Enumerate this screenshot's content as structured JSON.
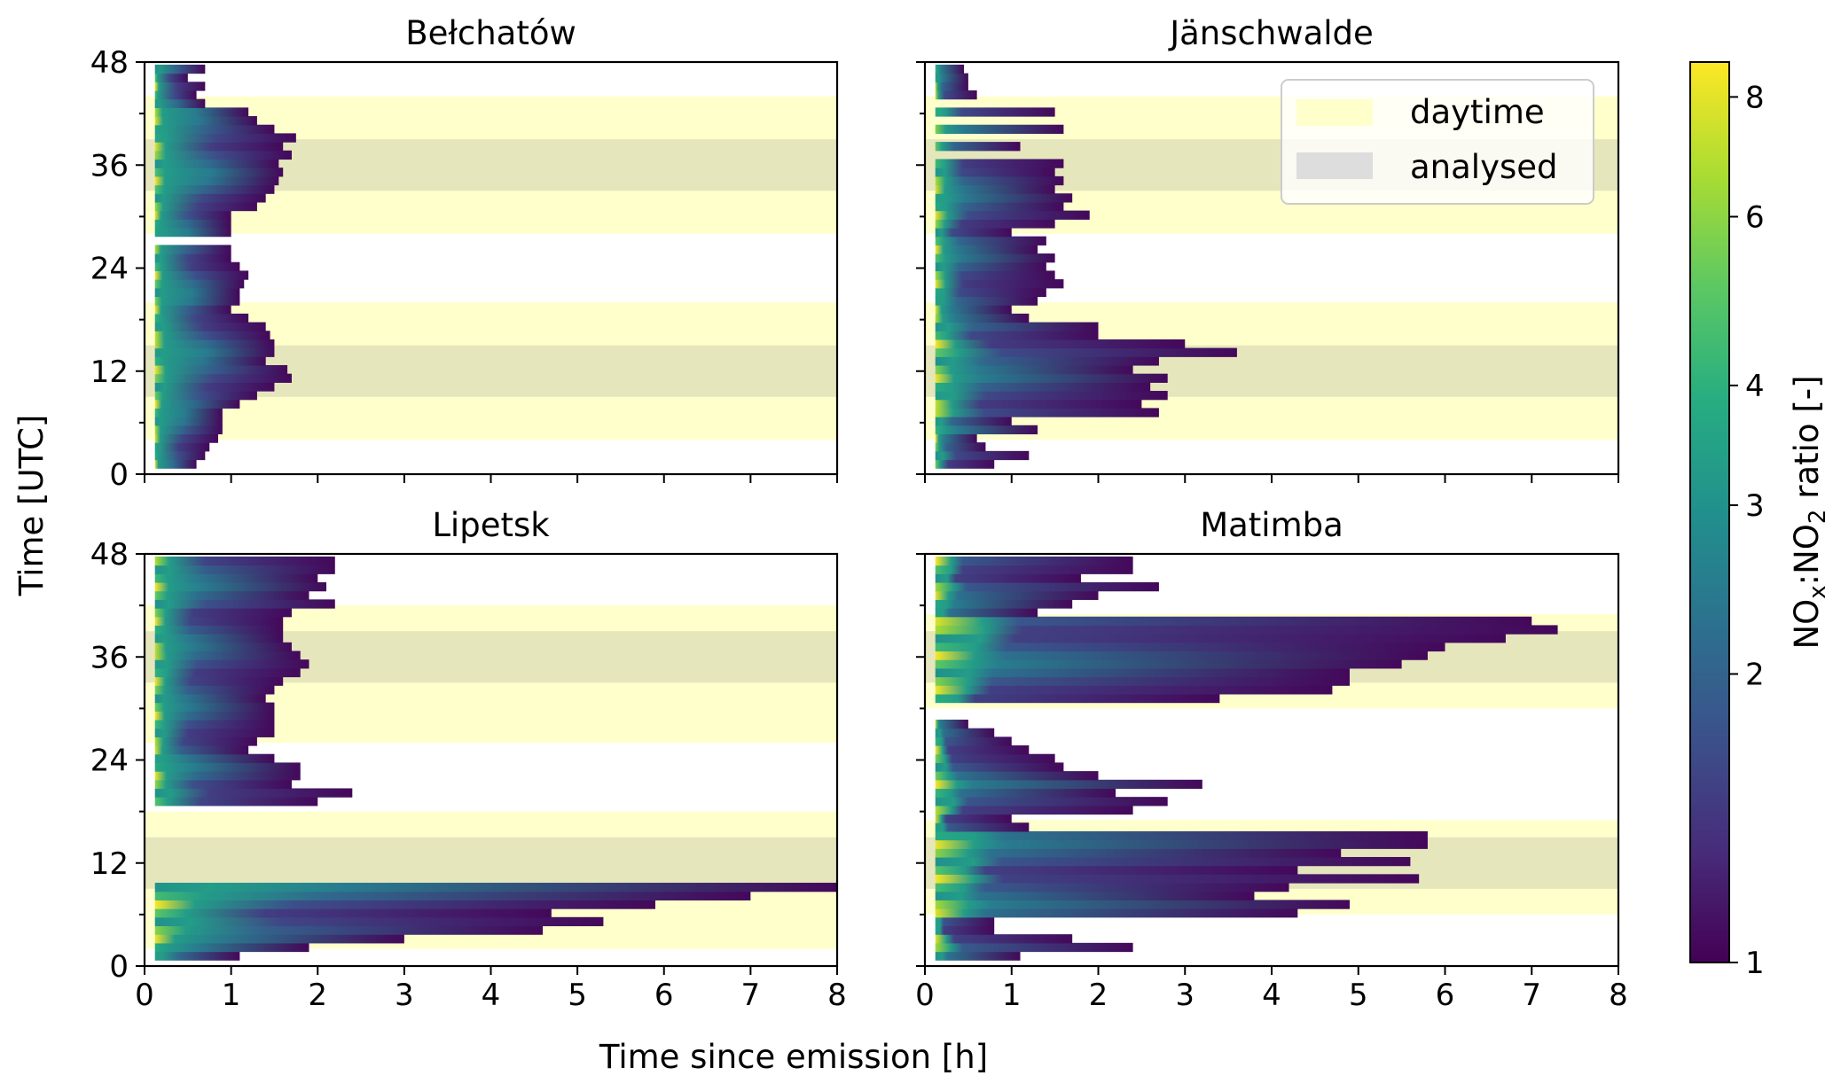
{
  "figure": {
    "xlabel": "Time since emission [h]",
    "ylabel": "Time [UTC]",
    "x_ticks": [
      0,
      1,
      2,
      3,
      4,
      5,
      6,
      7,
      8
    ],
    "y_ticks": [
      0,
      12,
      24,
      36,
      48
    ],
    "xlim": [
      0,
      8
    ],
    "ylim": [
      0,
      48
    ]
  },
  "legend": {
    "placement": "top-right of Jänschwalde panel",
    "items": [
      {
        "label": "daytime",
        "color": "#ffffcc"
      },
      {
        "label": "analysed",
        "color": "#dddddd"
      }
    ]
  },
  "colorbar": {
    "label_prefix": "NO",
    "label_sub1": "x",
    "label_mid": ":NO",
    "label_sub2": "2",
    "label_suffix": " ratio [-]",
    "scale": "log",
    "range": [
      1,
      8.7
    ],
    "ticks": [
      1,
      2,
      3,
      4,
      6,
      8
    ],
    "colormap": [
      "#440154",
      "#472c7a",
      "#3b518b",
      "#2c718e",
      "#21908d",
      "#27ad81",
      "#5cc863",
      "#aadc32",
      "#fde725"
    ]
  },
  "chart_data": [
    {
      "type": "heatmap",
      "title": "Bełchatów",
      "xlim": [
        0,
        8
      ],
      "ylim": [
        0,
        48
      ],
      "daytime": [
        [
          4,
          20
        ],
        [
          28,
          44
        ]
      ],
      "analysed": [
        [
          9,
          15
        ],
        [
          33,
          39
        ]
      ],
      "rows": [
        [
          1.2,
          0.6
        ],
        [
          2.2,
          0.7
        ],
        [
          3.2,
          0.75
        ],
        [
          4.2,
          0.85
        ],
        [
          5.2,
          0.9
        ],
        [
          6.2,
          0.9
        ],
        [
          7.2,
          0.9
        ],
        [
          8.2,
          1.1
        ],
        [
          9.2,
          1.3
        ],
        [
          10.2,
          1.5
        ],
        [
          11.2,
          1.7
        ],
        [
          12.2,
          1.65
        ],
        [
          13.2,
          1.4
        ],
        [
          14.2,
          1.5
        ],
        [
          15.2,
          1.5
        ],
        [
          16.2,
          1.45
        ],
        [
          17.2,
          1.4
        ],
        [
          18.2,
          1.2
        ],
        [
          19.2,
          1.0
        ],
        [
          20.2,
          1.1
        ],
        [
          21.2,
          1.1
        ],
        [
          22.2,
          1.15
        ],
        [
          23.2,
          1.2
        ],
        [
          24.2,
          1.1
        ],
        [
          25.2,
          1.0
        ],
        [
          26.2,
          1.0
        ],
        [
          28.2,
          1.0
        ],
        [
          29.2,
          1.0
        ],
        [
          30.2,
          1.0
        ],
        [
          31.2,
          1.3
        ],
        [
          32.2,
          1.4
        ],
        [
          33.2,
          1.5
        ],
        [
          34.2,
          1.55
        ],
        [
          35.2,
          1.6
        ],
        [
          36.2,
          1.55
        ],
        [
          37.2,
          1.7
        ],
        [
          38.2,
          1.6
        ],
        [
          39.2,
          1.75
        ],
        [
          40.2,
          1.5
        ],
        [
          41.2,
          1.3
        ],
        [
          42.2,
          1.2
        ],
        [
          43.2,
          0.7
        ],
        [
          44.2,
          0.6
        ],
        [
          45.2,
          0.7
        ],
        [
          46.2,
          0.5
        ],
        [
          47.2,
          0.7
        ]
      ]
    },
    {
      "type": "heatmap",
      "title": "Jänschwalde",
      "xlim": [
        0,
        8
      ],
      "ylim": [
        0,
        48
      ],
      "daytime": [
        [
          4,
          20
        ],
        [
          28,
          44
        ]
      ],
      "analysed": [
        [
          9,
          15
        ],
        [
          33,
          39
        ]
      ],
      "rows": [
        [
          1.2,
          0.8
        ],
        [
          2.2,
          1.2
        ],
        [
          3.2,
          0.7
        ],
        [
          4.2,
          0.6
        ],
        [
          5.2,
          1.3
        ],
        [
          6.2,
          1.0
        ],
        [
          7.2,
          2.7
        ],
        [
          8.2,
          2.5
        ],
        [
          9.2,
          2.8
        ],
        [
          10.2,
          2.6
        ],
        [
          11.2,
          2.8
        ],
        [
          12.2,
          2.4
        ],
        [
          13.2,
          2.7
        ],
        [
          14.2,
          3.6
        ],
        [
          15.2,
          3.0
        ],
        [
          16.2,
          2.0
        ],
        [
          17.2,
          2.0
        ],
        [
          18.2,
          1.2
        ],
        [
          19.2,
          1.0
        ],
        [
          20.2,
          1.3
        ],
        [
          21.2,
          1.4
        ],
        [
          22.2,
          1.6
        ],
        [
          23.2,
          1.5
        ],
        [
          24.2,
          1.4
        ],
        [
          25.2,
          1.5
        ],
        [
          26.2,
          1.3
        ],
        [
          27.2,
          1.4
        ],
        [
          28.2,
          1.0
        ],
        [
          29.2,
          1.5
        ],
        [
          30.2,
          1.9
        ],
        [
          31.2,
          1.6
        ],
        [
          32.2,
          1.7
        ],
        [
          33.2,
          1.5
        ],
        [
          34.2,
          1.6
        ],
        [
          35.2,
          1.5
        ],
        [
          36.2,
          1.6
        ],
        [
          38.2,
          1.1
        ],
        [
          40.2,
          1.6
        ],
        [
          42.2,
          1.5
        ],
        [
          44.2,
          0.6
        ],
        [
          45.2,
          0.5
        ],
        [
          46.2,
          0.5
        ],
        [
          47.2,
          0.45
        ]
      ]
    },
    {
      "type": "heatmap",
      "title": "Lipetsk",
      "xlim": [
        0,
        8
      ],
      "ylim": [
        0,
        48
      ],
      "daytime": [
        [
          2,
          18
        ],
        [
          26,
          42
        ]
      ],
      "analysed": [
        [
          9,
          15
        ],
        [
          33,
          39
        ]
      ],
      "rows": [
        [
          1.2,
          1.1
        ],
        [
          2.2,
          1.9
        ],
        [
          3.2,
          3.0
        ],
        [
          4.2,
          4.6
        ],
        [
          5.2,
          5.3
        ],
        [
          6.2,
          4.7
        ],
        [
          7.2,
          5.9
        ],
        [
          8.2,
          7.0
        ],
        [
          9.2,
          8.0
        ],
        [
          19.2,
          2.0
        ],
        [
          20.2,
          2.4
        ],
        [
          21.2,
          1.7
        ],
        [
          22.2,
          1.8
        ],
        [
          23.2,
          1.8
        ],
        [
          24.2,
          1.5
        ],
        [
          25.2,
          1.2
        ],
        [
          26.2,
          1.3
        ],
        [
          27.2,
          1.5
        ],
        [
          28.2,
          1.5
        ],
        [
          29.2,
          1.5
        ],
        [
          30.2,
          1.5
        ],
        [
          31.2,
          1.4
        ],
        [
          32.2,
          1.5
        ],
        [
          33.2,
          1.6
        ],
        [
          34.2,
          1.8
        ],
        [
          35.2,
          1.9
        ],
        [
          36.2,
          1.8
        ],
        [
          37.2,
          1.7
        ],
        [
          38.2,
          1.6
        ],
        [
          39.2,
          1.6
        ],
        [
          40.2,
          1.6
        ],
        [
          41.2,
          1.7
        ],
        [
          42.2,
          2.2
        ],
        [
          43.2,
          1.9
        ],
        [
          44.2,
          2.1
        ],
        [
          45.2,
          2.0
        ],
        [
          46.2,
          2.2
        ],
        [
          47.2,
          2.2
        ]
      ]
    },
    {
      "type": "heatmap",
      "title": "Matimba",
      "xlim": [
        0,
        8
      ],
      "ylim": [
        0,
        48
      ],
      "daytime": [
        [
          6,
          17
        ],
        [
          30,
          41
        ]
      ],
      "analysed": [
        [
          9,
          15
        ],
        [
          33,
          39
        ]
      ],
      "rows": [
        [
          1.2,
          1.1
        ],
        [
          2.2,
          2.4
        ],
        [
          3.2,
          1.7
        ],
        [
          4.2,
          0.8
        ],
        [
          5.2,
          0.8
        ],
        [
          6.2,
          4.3
        ],
        [
          7.2,
          4.9
        ],
        [
          8.2,
          3.8
        ],
        [
          9.2,
          4.2
        ],
        [
          10.2,
          5.7
        ],
        [
          11.2,
          4.3
        ],
        [
          12.2,
          5.6
        ],
        [
          13.2,
          4.8
        ],
        [
          14.2,
          5.8
        ],
        [
          15.2,
          5.8
        ],
        [
          16.2,
          1.2
        ],
        [
          17.2,
          1.0
        ],
        [
          18.2,
          2.4
        ],
        [
          19.2,
          2.8
        ],
        [
          20.2,
          2.2
        ],
        [
          21.2,
          3.2
        ],
        [
          22.2,
          2.0
        ],
        [
          23.2,
          1.6
        ],
        [
          24.2,
          1.5
        ],
        [
          25.2,
          1.2
        ],
        [
          26.2,
          1.0
        ],
        [
          27.2,
          0.8
        ],
        [
          28.2,
          0.5
        ],
        [
          31.2,
          3.4
        ],
        [
          32.2,
          4.7
        ],
        [
          33.2,
          4.9
        ],
        [
          34.2,
          4.9
        ],
        [
          35.2,
          5.5
        ],
        [
          36.2,
          5.8
        ],
        [
          37.2,
          6.0
        ],
        [
          38.2,
          6.7
        ],
        [
          39.2,
          7.3
        ],
        [
          40.2,
          7.0
        ],
        [
          41.2,
          1.3
        ],
        [
          42.2,
          1.7
        ],
        [
          43.2,
          2.0
        ],
        [
          44.2,
          2.7
        ],
        [
          45.2,
          1.8
        ],
        [
          46.2,
          2.4
        ],
        [
          47.2,
          2.4
        ]
      ]
    }
  ]
}
